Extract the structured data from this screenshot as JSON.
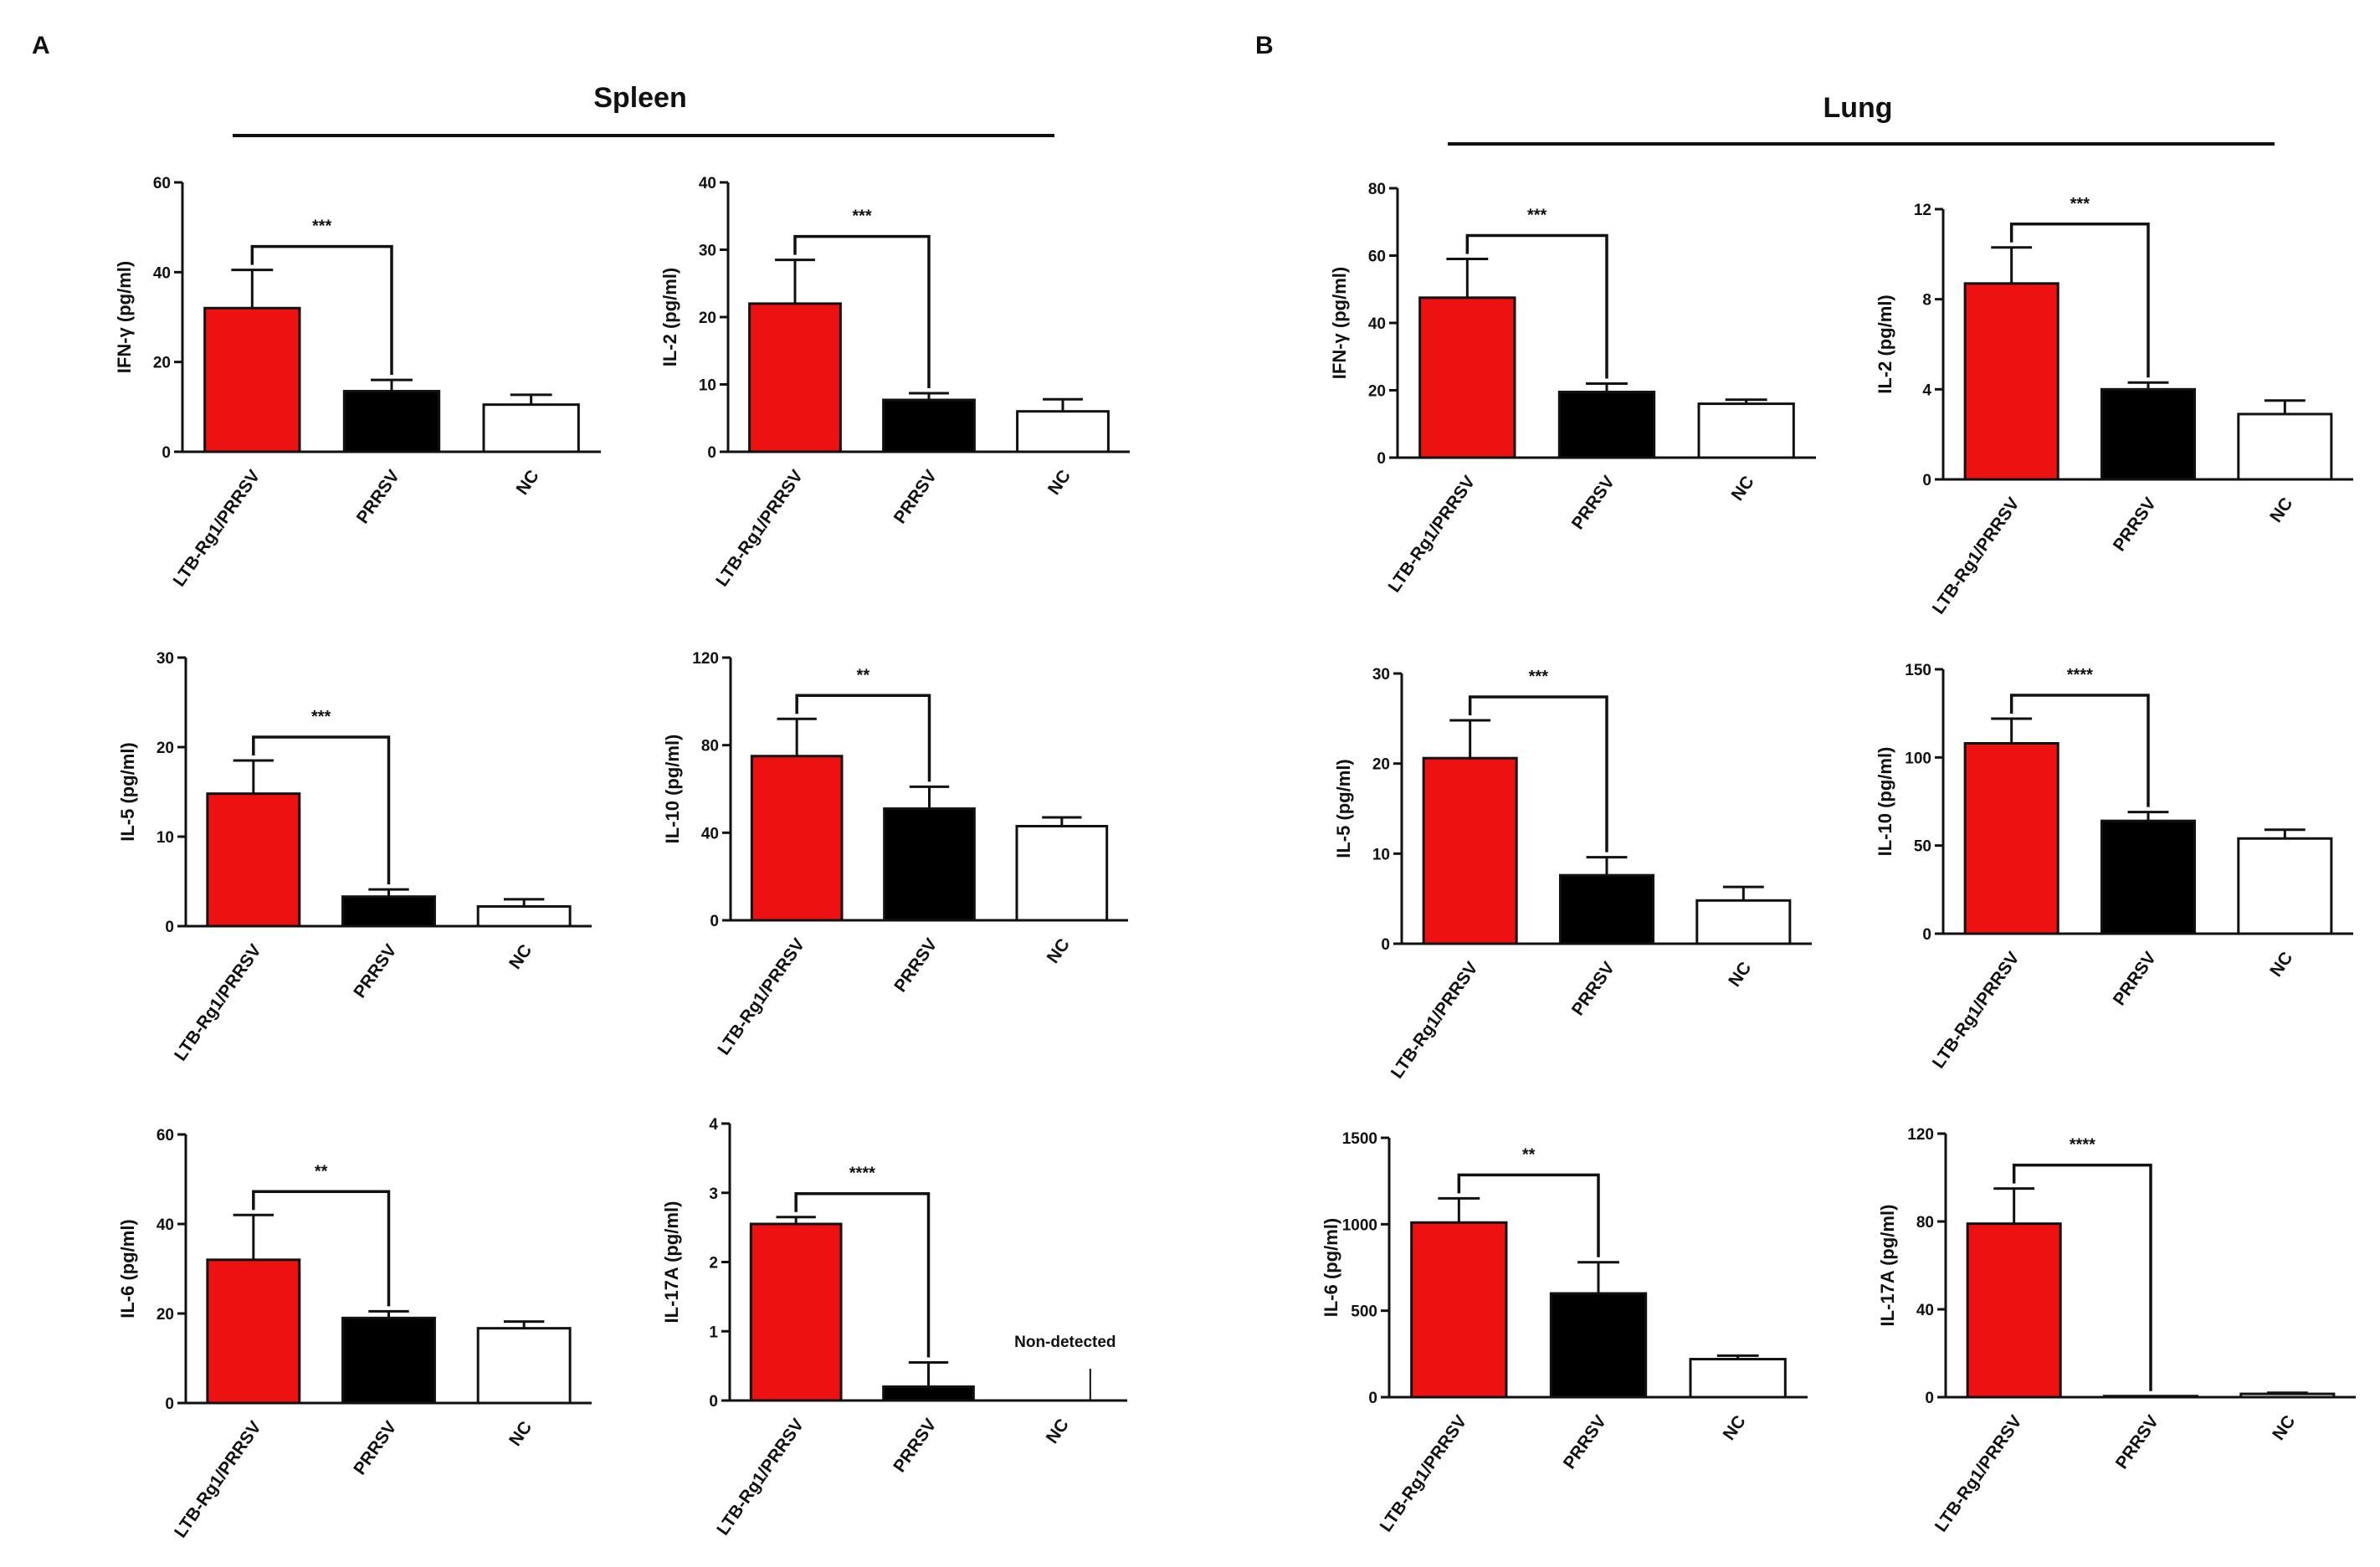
{
  "panels": {
    "A": {
      "letter": "A",
      "title": "Spleen"
    },
    "B": {
      "letter": "B",
      "title": "Lung"
    }
  },
  "colors": {
    "LTB-Rg1/PRRSV": "#ee1111",
    "PRRSV": "#000000",
    "NC": "#ffffff",
    "outline": "#111111"
  },
  "chart_data": [
    {
      "id": "spleen_ifng",
      "type": "bar",
      "panel": "A",
      "categories": [
        "LTB-Rg1/PRRSV",
        "PRRSV",
        "NC"
      ],
      "values": [
        32,
        13.5,
        10.5
      ],
      "errors": [
        8.5,
        2.5,
        2.2
      ],
      "ylabel": "IFN-γ (pg/ml)",
      "ylim": [
        0,
        60
      ],
      "yticks": [
        0,
        20,
        40,
        60
      ],
      "significance": {
        "from": 0,
        "to": 1,
        "label": "***"
      }
    },
    {
      "id": "spleen_il2",
      "type": "bar",
      "panel": "A",
      "categories": [
        "LTB-Rg1/PRRSV",
        "PRRSV",
        "NC"
      ],
      "values": [
        22,
        7.7,
        6
      ],
      "errors": [
        6.5,
        1,
        1.8
      ],
      "ylabel": "IL-2 (pg/ml)",
      "ylim": [
        0,
        40
      ],
      "yticks": [
        0,
        10,
        20,
        30,
        40
      ],
      "significance": {
        "from": 0,
        "to": 1,
        "label": "***"
      }
    },
    {
      "id": "spleen_il5",
      "type": "bar",
      "panel": "A",
      "categories": [
        "LTB-Rg1/PRRSV",
        "PRRSV",
        "NC"
      ],
      "values": [
        14.8,
        3.3,
        2.2
      ],
      "errors": [
        3.7,
        0.8,
        0.8
      ],
      "ylabel": "IL-5 (pg/ml)",
      "ylim": [
        0,
        30
      ],
      "yticks": [
        0,
        10,
        20,
        30
      ],
      "significance": {
        "from": 0,
        "to": 1,
        "label": "***"
      }
    },
    {
      "id": "spleen_il10",
      "type": "bar",
      "panel": "A",
      "categories": [
        "LTB-Rg1/PRRSV",
        "PRRSV",
        "NC"
      ],
      "values": [
        75,
        51,
        43
      ],
      "errors": [
        17,
        10,
        4
      ],
      "ylabel": "IL-10 (pg/ml)",
      "ylim": [
        0,
        120
      ],
      "yticks": [
        0,
        40,
        80,
        120
      ],
      "significance": {
        "from": 0,
        "to": 1,
        "label": "**"
      }
    },
    {
      "id": "spleen_il6",
      "type": "bar",
      "panel": "A",
      "categories": [
        "LTB-Rg1/PRRSV",
        "PRRSV",
        "NC"
      ],
      "values": [
        32,
        19,
        16.7
      ],
      "errors": [
        10,
        1.5,
        1.5
      ],
      "ylabel": "IL-6 (pg/ml)",
      "ylim": [
        0,
        60
      ],
      "yticks": [
        0,
        20,
        40,
        60
      ],
      "significance": {
        "from": 0,
        "to": 1,
        "label": "**"
      }
    },
    {
      "id": "spleen_il17a",
      "type": "bar",
      "panel": "A",
      "categories": [
        "LTB-Rg1/PRRSV",
        "PRRSV",
        "NC"
      ],
      "values": [
        2.55,
        0.2,
        0
      ],
      "errors": [
        0.1,
        0.35,
        0
      ],
      "ylabel": "IL-17A (pg/ml)",
      "ylim": [
        0,
        4
      ],
      "yticks": [
        0,
        1,
        2,
        3,
        4
      ],
      "significance": {
        "from": 0,
        "to": 1,
        "label": "****"
      },
      "annotation": {
        "index": 2,
        "text": "Non-detected"
      }
    },
    {
      "id": "lung_ifng",
      "type": "bar",
      "panel": "B",
      "categories": [
        "LTB-Rg1/PRRSV",
        "PRRSV",
        "NC"
      ],
      "values": [
        47.5,
        19.5,
        16
      ],
      "errors": [
        11.5,
        2.5,
        1.2
      ],
      "ylabel": "IFN-γ (pg/ml)",
      "ylim": [
        0,
        80
      ],
      "yticks": [
        0,
        20,
        40,
        60,
        80
      ],
      "significance": {
        "from": 0,
        "to": 1,
        "label": "***"
      }
    },
    {
      "id": "lung_il2",
      "type": "bar",
      "panel": "B",
      "categories": [
        "LTB-Rg1/PRRSV",
        "PRRSV",
        "NC"
      ],
      "values": [
        8.7,
        4,
        2.9
      ],
      "errors": [
        1.6,
        0.3,
        0.6
      ],
      "ylabel": "IL-2 (pg/ml)",
      "ylim": [
        0,
        12
      ],
      "yticks": [
        0,
        4,
        8,
        12
      ],
      "significance": {
        "from": 0,
        "to": 1,
        "label": "***"
      }
    },
    {
      "id": "lung_il5",
      "type": "bar",
      "panel": "B",
      "categories": [
        "LTB-Rg1/PRRSV",
        "PRRSV",
        "NC"
      ],
      "values": [
        20.6,
        7.6,
        4.8
      ],
      "errors": [
        4.2,
        2,
        1.5
      ],
      "ylabel": "IL-5 (pg/ml)",
      "ylim": [
        0,
        30
      ],
      "yticks": [
        0,
        10,
        20,
        30
      ],
      "significance": {
        "from": 0,
        "to": 1,
        "label": "***"
      }
    },
    {
      "id": "lung_il10",
      "type": "bar",
      "panel": "B",
      "categories": [
        "LTB-Rg1/PRRSV",
        "PRRSV",
        "NC"
      ],
      "values": [
        108,
        64,
        54
      ],
      "errors": [
        14,
        5,
        5
      ],
      "ylabel": "IL-10 (pg/ml)",
      "ylim": [
        0,
        150
      ],
      "yticks": [
        0,
        50,
        100,
        150
      ],
      "significance": {
        "from": 0,
        "to": 1,
        "label": "****"
      }
    },
    {
      "id": "lung_il6",
      "type": "bar",
      "panel": "B",
      "categories": [
        "LTB-Rg1/PRRSV",
        "PRRSV",
        "NC"
      ],
      "values": [
        1010,
        600,
        220
      ],
      "errors": [
        140,
        180,
        20
      ],
      "ylabel": "IL-6 (pg/ml)",
      "ylim": [
        0,
        1500
      ],
      "yticks": [
        0,
        500,
        1000,
        1500
      ],
      "significance": {
        "from": 0,
        "to": 1,
        "label": "**"
      }
    },
    {
      "id": "lung_il17a",
      "type": "bar",
      "panel": "B",
      "categories": [
        "LTB-Rg1/PRRSV",
        "PRRSV",
        "NC"
      ],
      "values": [
        79,
        0.5,
        1.5
      ],
      "errors": [
        16,
        0,
        0.5
      ],
      "ylabel": "IL-17A (pg/ml)",
      "ylim": [
        0,
        120
      ],
      "yticks": [
        0,
        40,
        80,
        120
      ],
      "significance": {
        "from": 0,
        "to": 1,
        "label": "****"
      }
    }
  ]
}
